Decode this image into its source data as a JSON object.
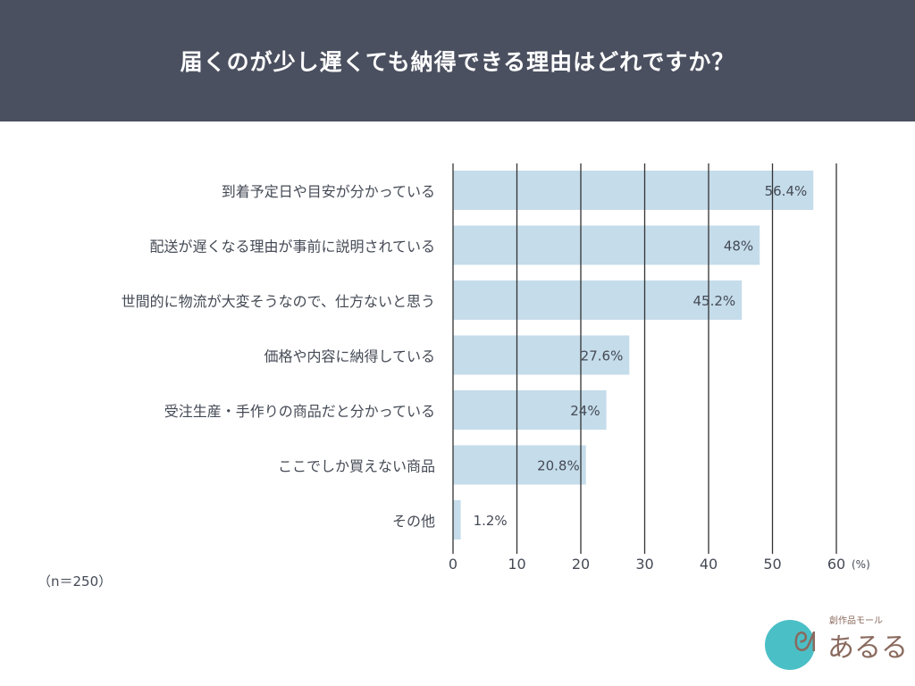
{
  "header": {
    "title": "届くのが少し遅くても納得できる理由はどれですか？"
  },
  "note": "（n＝250）",
  "logo": {
    "subtitle": "創作品モール",
    "name": "あるる"
  },
  "colors": {
    "header": "#4b5060",
    "bar": "#c5dcea",
    "grid": "#333333",
    "text": "#444a55"
  },
  "chart_data": {
    "type": "bar",
    "orientation": "horizontal",
    "categories": [
      "到着予定日や目安が分かっている",
      "配送が遅くなる理由が事前に説明されている",
      "世間的に物流が大変そうなので、仕方ないと思う",
      "価格や内容に納得している",
      "受注生産・手作りの商品だと分かっている",
      "ここでしか買えない商品",
      "その他"
    ],
    "values": [
      56.4,
      48,
      45.2,
      27.6,
      24,
      20.8,
      1.2
    ],
    "data_labels": [
      "56.4%",
      "48%",
      "45.2%",
      "27.6%",
      "24%",
      "20.8%",
      "1.2%"
    ],
    "xlim": [
      0,
      60
    ],
    "xticks": [
      "0",
      "10",
      "20",
      "30",
      "40",
      "50",
      "60"
    ],
    "xunit": "(%)",
    "grid": true
  }
}
